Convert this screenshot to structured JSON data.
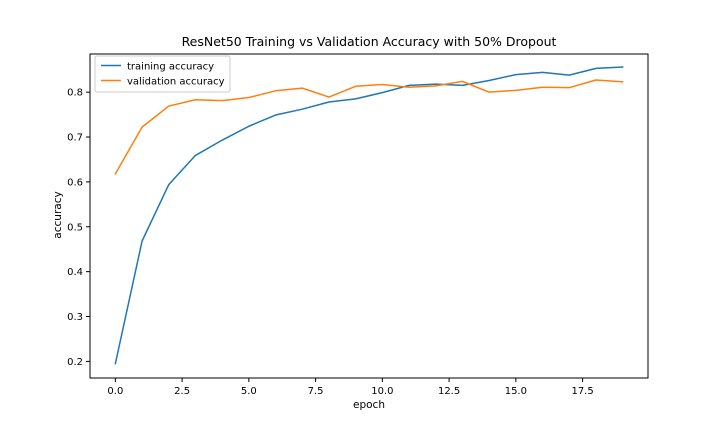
{
  "chart_data": {
    "type": "line",
    "title": "ResNet50 Training vs Validation Accuracy with 50% Dropout",
    "xlabel": "epoch",
    "ylabel": "accuracy",
    "x": [
      0,
      1,
      2,
      3,
      4,
      5,
      6,
      7,
      8,
      9,
      10,
      11,
      12,
      13,
      14,
      15,
      16,
      17,
      18,
      19
    ],
    "xlim": [
      -0.95,
      19.95
    ],
    "ylim": [
      0.163,
      0.885
    ],
    "x_ticks": [
      0,
      2.5,
      5,
      7.5,
      10,
      12.5,
      15,
      17.5
    ],
    "x_tick_labels": [
      "0.0",
      "2.5",
      "5.0",
      "7.5",
      "10.0",
      "12.5",
      "15.0",
      "17.5"
    ],
    "y_ticks": [
      0.2,
      0.3,
      0.4,
      0.5,
      0.6,
      0.7,
      0.8
    ],
    "y_tick_labels": [
      "0.2",
      "0.3",
      "0.4",
      "0.5",
      "0.6",
      "0.7",
      "0.8"
    ],
    "grid": false,
    "legend": "upper-left",
    "series": [
      {
        "name": "training accuracy",
        "color": "#1f77b4",
        "values": [
          0.195,
          0.468,
          0.594,
          0.659,
          0.693,
          0.724,
          0.749,
          0.762,
          0.778,
          0.785,
          0.799,
          0.815,
          0.818,
          0.815,
          0.826,
          0.839,
          0.844,
          0.838,
          0.853,
          0.856
        ]
      },
      {
        "name": "validation accuracy",
        "color": "#ff7f0e",
        "values": [
          0.618,
          0.722,
          0.769,
          0.783,
          0.781,
          0.788,
          0.803,
          0.809,
          0.789,
          0.813,
          0.817,
          0.811,
          0.814,
          0.824,
          0.8,
          0.804,
          0.811,
          0.81,
          0.827,
          0.823
        ]
      }
    ]
  }
}
